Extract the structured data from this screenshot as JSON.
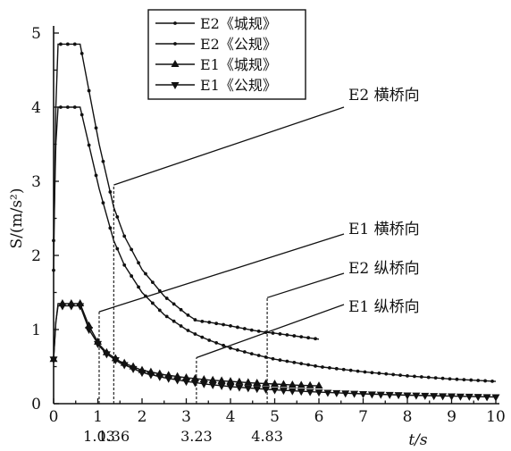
{
  "chart_data": {
    "type": "line",
    "xlabel": "t/s",
    "ylabel": "S/(m/s²)",
    "xlim": [
      0,
      10
    ],
    "ylim": [
      0,
      5
    ],
    "x_ticks": [
      "0",
      "1",
      "2",
      "3",
      "4",
      "5",
      "6",
      "7",
      "8",
      "9",
      "10"
    ],
    "y_ticks": [
      "0",
      "1",
      "2",
      "3",
      "4",
      "5"
    ],
    "grid": false,
    "legend_position": "top-center",
    "series": [
      {
        "name": "E2《城规》",
        "marker": "dot",
        "x": [
          0,
          0.05,
          0.1,
          0.3,
          0.6,
          1.03,
          1.36,
          1.6,
          2.0,
          2.5,
          3.0,
          3.23,
          3.5,
          4.0,
          4.5,
          4.83,
          5.0,
          5.5,
          6.0
        ],
        "y": [
          1.8,
          4.0,
          4.85,
          4.85,
          4.85,
          3.5,
          2.65,
          2.26,
          1.81,
          1.45,
          1.21,
          1.12,
          1.1,
          1.05,
          0.99,
          0.96,
          0.95,
          0.91,
          0.87
        ]
      },
      {
        "name": "E2《公规》",
        "marker": "dot",
        "x": [
          0,
          0.05,
          0.1,
          0.3,
          0.6,
          1.03,
          1.36,
          1.6,
          2.0,
          2.5,
          3.0,
          3.23,
          3.5,
          4.0,
          4.5,
          5.0,
          6.0,
          7.0,
          8.0,
          9.0,
          10.0
        ],
        "y": [
          2.2,
          3.5,
          4.0,
          4.0,
          4.0,
          2.9,
          2.2,
          1.87,
          1.5,
          1.2,
          1.0,
          0.93,
          0.86,
          0.75,
          0.67,
          0.6,
          0.5,
          0.43,
          0.375,
          0.333,
          0.3
        ]
      },
      {
        "name": "E1《城规》",
        "marker": "triangle-up",
        "x": [
          0,
          0.05,
          0.1,
          0.3,
          0.6,
          0.8,
          1.03,
          1.2,
          1.5,
          2.0,
          2.5,
          3.0,
          3.5,
          4.0,
          4.5,
          5.0,
          5.5,
          6.0
        ],
        "y": [
          0.6,
          1.1,
          1.35,
          1.35,
          1.35,
          1.05,
          0.8,
          0.69,
          0.57,
          0.45,
          0.39,
          0.35,
          0.32,
          0.3,
          0.28,
          0.265,
          0.25,
          0.24
        ]
      },
      {
        "name": "E1《公规》",
        "marker": "triangle-down",
        "x": [
          0,
          0.05,
          0.1,
          0.3,
          0.6,
          0.8,
          1.03,
          1.2,
          1.5,
          2.0,
          2.5,
          3.0,
          3.5,
          4.0,
          5.0,
          6.0,
          7.0,
          8.0,
          9.0,
          10.0
        ],
        "y": [
          0.6,
          1.1,
          1.32,
          1.32,
          1.32,
          1.0,
          0.78,
          0.67,
          0.55,
          0.42,
          0.35,
          0.3,
          0.26,
          0.23,
          0.185,
          0.155,
          0.132,
          0.115,
          0.102,
          0.09
        ]
      }
    ],
    "marked_periods": [
      {
        "label": "1.03",
        "x": 1.03,
        "y": 1.24
      },
      {
        "label": "1.36",
        "x": 1.36,
        "y": 2.95
      },
      {
        "label": "3.23",
        "x": 3.23,
        "y": 0.62
      },
      {
        "label": "4.83",
        "x": 4.83,
        "y": 1.43
      }
    ],
    "annotations": [
      {
        "text": "E2 横桥向",
        "target_x": 1.36,
        "target_y": 2.95
      },
      {
        "text": "E1 横桥向",
        "target_x": 1.03,
        "target_y": 1.24
      },
      {
        "text": "E2 纵桥向",
        "target_x": 4.83,
        "target_y": 1.43
      },
      {
        "text": "E1 纵桥向",
        "target_x": 3.23,
        "target_y": 0.62
      }
    ]
  }
}
